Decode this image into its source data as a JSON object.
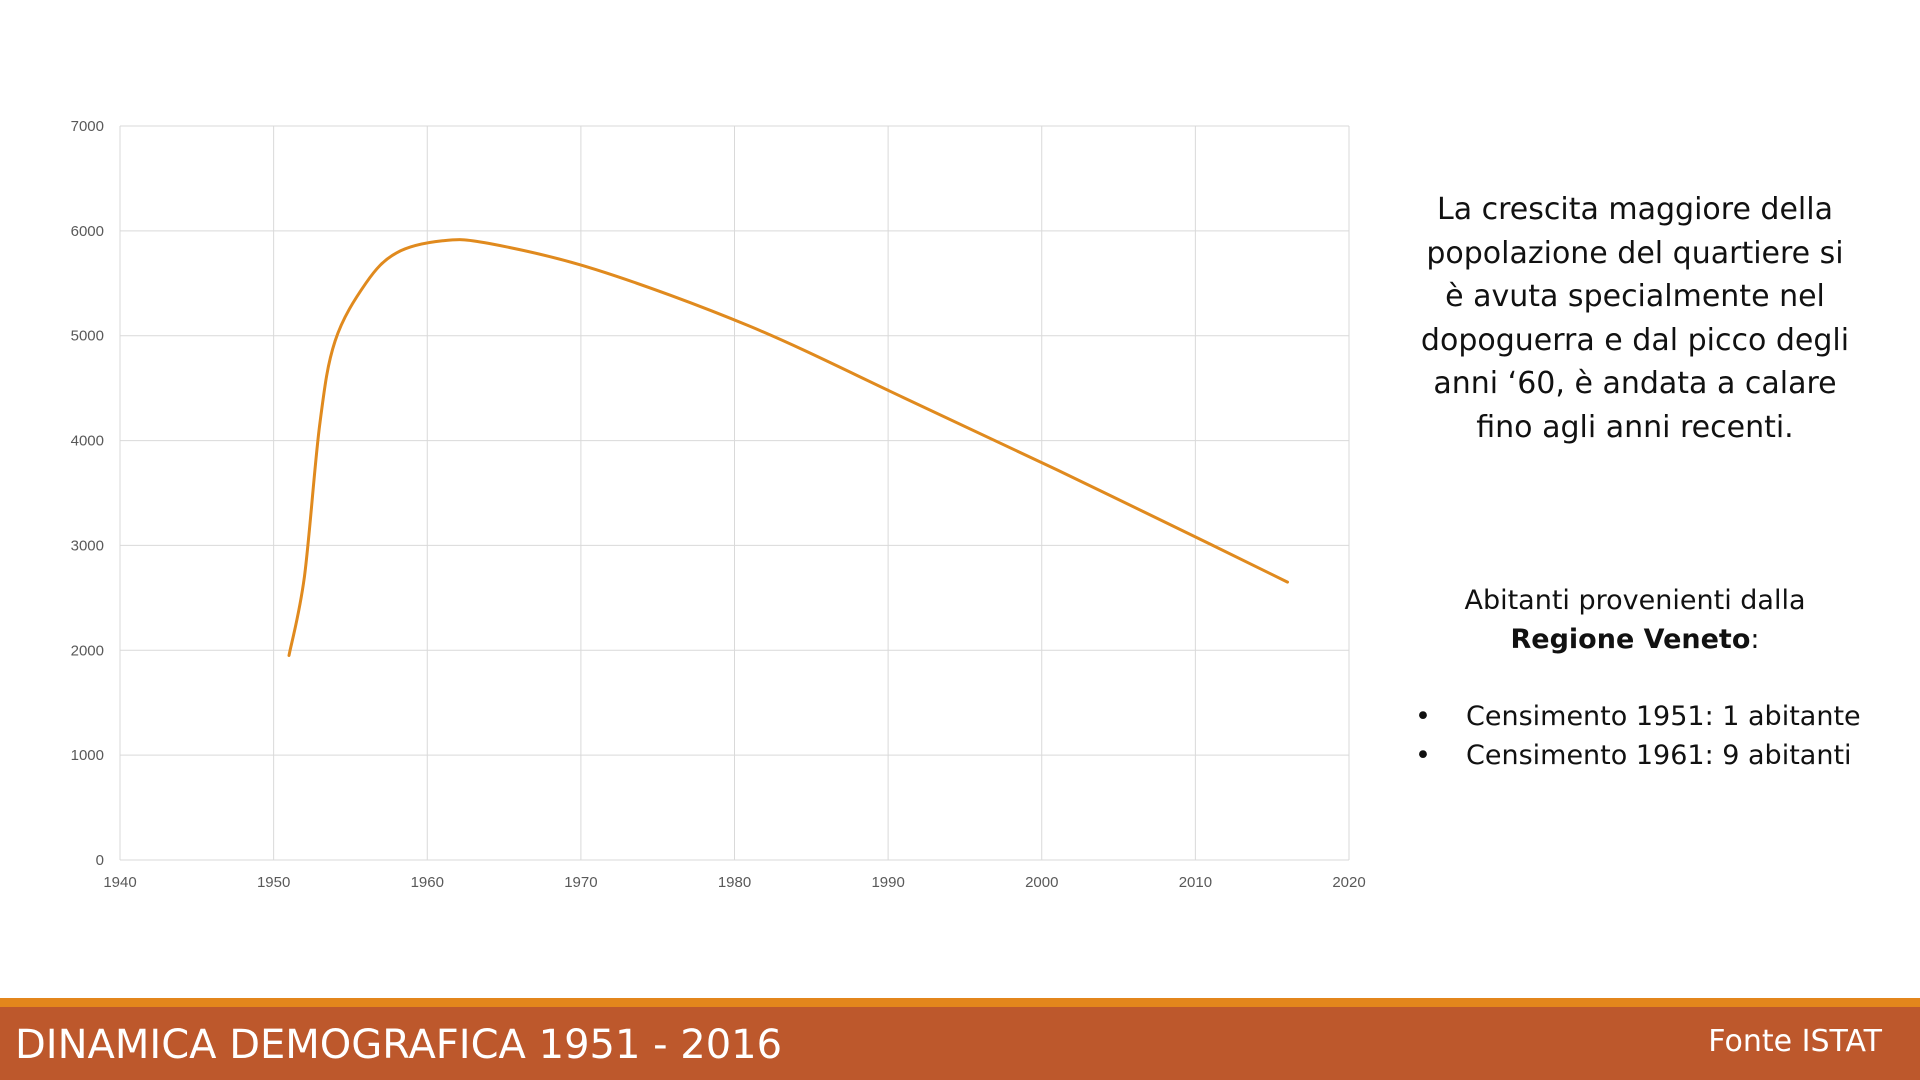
{
  "chart_data": {
    "type": "line",
    "title": "",
    "xlabel": "",
    "ylabel": "",
    "xlim": [
      1940,
      2020
    ],
    "ylim": [
      0,
      7000
    ],
    "x_ticks": [
      "1940",
      "1950",
      "1960",
      "1970",
      "1980",
      "1990",
      "2000",
      "2010",
      "2020"
    ],
    "y_ticks": [
      "0",
      "1000",
      "2000",
      "3000",
      "4000",
      "5000",
      "6000",
      "7000"
    ],
    "grid": true,
    "legend": "none",
    "series": [
      {
        "color": "#e08a1e",
        "smooth": true,
        "points": [
          [
            1951,
            1950
          ],
          [
            1952,
            2700
          ],
          [
            1953,
            4150
          ],
          [
            1954,
            4950
          ],
          [
            1956,
            5500
          ],
          [
            1958,
            5790
          ],
          [
            1961,
            5905
          ],
          [
            1964,
            5880
          ],
          [
            1971,
            5630
          ],
          [
            1981,
            5090
          ],
          [
            1991,
            4410
          ],
          [
            2001,
            3720
          ],
          [
            2011,
            3010
          ],
          [
            2016,
            2650
          ]
        ]
      }
    ]
  },
  "commentary": {
    "lines": [
      "La crescita maggiore della",
      "popolazione del quartiere si",
      "è avuta specialmente nel",
      "dopoguerra e dal picco degli",
      "anni ‘60, è andata a calare",
      "fino agli anni recenti."
    ]
  },
  "origin": {
    "intro": "Abitanti provenienti dalla",
    "region": "Regione Veneto",
    "suffix": ":",
    "bullet": "•",
    "census": [
      "Censimento 1951: 1 abitante",
      "Censimento 1961: 9 abitanti"
    ]
  },
  "footer": {
    "title": "DINAMICA DEMOGRAFICA 1951 - 2016",
    "source": "Fonte ISTAT",
    "bar_color": "#bd582c",
    "stripe_color": "#e3861c"
  }
}
